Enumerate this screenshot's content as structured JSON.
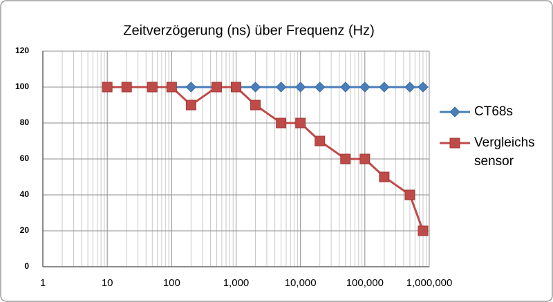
{
  "chart_data": {
    "type": "line",
    "title": "Zeitverzögerung (ns) über Frequenz (Hz)",
    "x": [
      10,
      20,
      50,
      100,
      200,
      500,
      1000,
      2000,
      5000,
      10000,
      20000,
      50000,
      100000,
      200000,
      500000,
      800000
    ],
    "series": [
      {
        "name": "CT68s",
        "color": "#4a7ebb",
        "marker": "diamond",
        "values": [
          100,
          100,
          100,
          100,
          100,
          100,
          100,
          100,
          100,
          100,
          100,
          100,
          100,
          100,
          100,
          100
        ]
      },
      {
        "name": "Vergleichs sensor",
        "color": "#be4b48",
        "marker": "square",
        "values": [
          100,
          100,
          100,
          100,
          90,
          100,
          100,
          90,
          80,
          80,
          70,
          60,
          60,
          50,
          40,
          20
        ]
      }
    ],
    "xscale": "log",
    "xlim": [
      1,
      1000000
    ],
    "xticks": [
      1,
      10,
      100,
      {
        "value": 1000,
        "label": "1,000"
      },
      {
        "value": 10000,
        "label": "10,000"
      },
      {
        "value": 100000,
        "label": "100,000"
      },
      {
        "value": 1000000,
        "label": "1,000,000"
      }
    ],
    "ylim": [
      0,
      120
    ],
    "yticks": [
      0,
      20,
      40,
      60,
      80,
      100,
      120
    ],
    "grid": true,
    "minor_grid": true,
    "legend": "right"
  }
}
